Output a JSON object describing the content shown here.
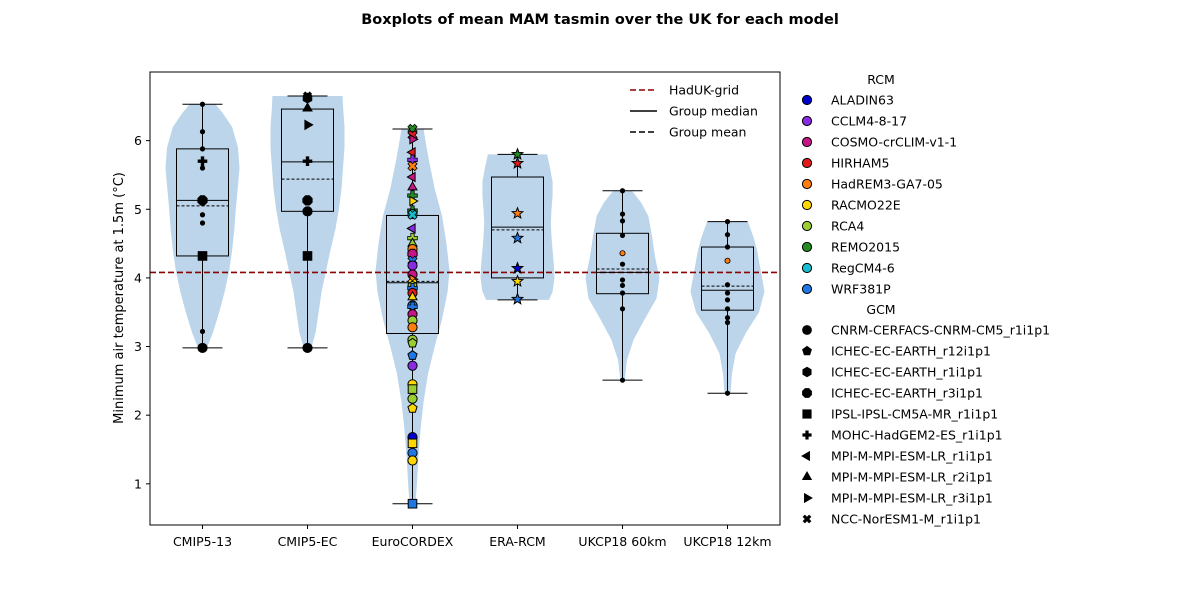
{
  "chart_data": {
    "type": "boxplot",
    "title": "Boxplots of mean MAM tasmin over the UK for each model",
    "xlabel": "",
    "ylabel": "Minimum air temperature at 1.5m (°C)",
    "ylim": [
      0.4,
      7.0
    ],
    "yticks": [
      1,
      2,
      3,
      4,
      5,
      6
    ],
    "grid": false,
    "reference_line": {
      "label": "HadUK-grid",
      "value": 4.08,
      "color": "#8b0000"
    },
    "legend_top": {
      "position": "top-right inside",
      "entries": [
        {
          "label": "HadUK-grid",
          "style": "dashed",
          "color": "#8b0000"
        },
        {
          "label": "Group median",
          "style": "solid",
          "color": "#000000"
        },
        {
          "label": "Group mean",
          "style": "dashed",
          "color": "#000000"
        }
      ]
    },
    "legend_rcm": {
      "title": "RCM",
      "entries": [
        {
          "label": "ALADIN63",
          "color": "#0000cc"
        },
        {
          "label": "CCLM4-8-17",
          "color": "#8a2be2"
        },
        {
          "label": "COSMO-crCLIM-v1-1",
          "color": "#c71585"
        },
        {
          "label": "HIRHAM5",
          "color": "#e31a1c"
        },
        {
          "label": "HadREM3-GA7-05",
          "color": "#ff7f0e"
        },
        {
          "label": "RACMO22E",
          "color": "#ffd700"
        },
        {
          "label": "RCA4",
          "color": "#9acd32"
        },
        {
          "label": "REMO2015",
          "color": "#228b22"
        },
        {
          "label": "RegCM4-6",
          "color": "#17becf"
        },
        {
          "label": "WRF381P",
          "color": "#1f77e4"
        }
      ]
    },
    "legend_gcm": {
      "title": "GCM",
      "entries": [
        {
          "label": "CNRM-CERFACS-CNRM-CM5_r1i1p1",
          "marker": "circle"
        },
        {
          "label": "ICHEC-EC-EARTH_r12i1p1",
          "marker": "pentagon"
        },
        {
          "label": "ICHEC-EC-EARTH_r1i1p1",
          "marker": "hexagon"
        },
        {
          "label": "ICHEC-EC-EARTH_r3i1p1",
          "marker": "octagon"
        },
        {
          "label": "IPSL-IPSL-CM5A-MR_r1i1p1",
          "marker": "square"
        },
        {
          "label": "MOHC-HadGEM2-ES_r1i1p1",
          "marker": "plus"
        },
        {
          "label": "MPI-M-MPI-ESM-LR_r1i1p1",
          "marker": "tri-left"
        },
        {
          "label": "MPI-M-MPI-ESM-LR_r2i1p1",
          "marker": "tri-up"
        },
        {
          "label": "MPI-M-MPI-ESM-LR_r3i1p1",
          "marker": "tri-right"
        },
        {
          "label": "NCC-NorESM1-M_r1i1p1",
          "marker": "x"
        }
      ]
    },
    "groups": [
      {
        "name": "CMIP5-13",
        "q1": 4.32,
        "median": 5.13,
        "mean": 5.05,
        "q3": 5.88,
        "whisker_low": 2.98,
        "whisker_high": 6.53,
        "violin": [
          [
            2.98,
            0.12
          ],
          [
            3.2,
            0.28
          ],
          [
            3.5,
            0.45
          ],
          [
            3.8,
            0.6
          ],
          [
            4.1,
            0.72
          ],
          [
            4.4,
            0.8
          ],
          [
            4.7,
            0.86
          ],
          [
            5.0,
            0.9
          ],
          [
            5.3,
            0.95
          ],
          [
            5.6,
            1.0
          ],
          [
            5.9,
            0.96
          ],
          [
            6.2,
            0.8
          ],
          [
            6.4,
            0.55
          ],
          [
            6.53,
            0.35
          ]
        ],
        "points": [
          {
            "y": 6.53,
            "m": "dot",
            "c": "#000000"
          },
          {
            "y": 6.13,
            "m": "dot",
            "c": "#000000"
          },
          {
            "y": 5.88,
            "m": "dot",
            "c": "#000000"
          },
          {
            "y": 5.7,
            "m": "plus",
            "c": "#000000"
          },
          {
            "y": 5.6,
            "m": "dot",
            "c": "#000000"
          },
          {
            "y": 5.13,
            "m": "octagon",
            "c": "#000000"
          },
          {
            "y": 4.92,
            "m": "dot",
            "c": "#000000"
          },
          {
            "y": 4.8,
            "m": "dot",
            "c": "#000000"
          },
          {
            "y": 4.32,
            "m": "square",
            "c": "#000000"
          },
          {
            "y": 3.22,
            "m": "dot",
            "c": "#000000"
          },
          {
            "y": 2.98,
            "m": "circle",
            "c": "#000000"
          }
        ]
      },
      {
        "name": "CMIP5-EC",
        "q1": 4.97,
        "median": 5.69,
        "mean": 5.44,
        "q3": 6.46,
        "whisker_low": 2.98,
        "whisker_high": 6.65,
        "violin": [
          [
            2.98,
            0.1
          ],
          [
            3.2,
            0.22
          ],
          [
            3.5,
            0.3
          ],
          [
            3.8,
            0.38
          ],
          [
            4.1,
            0.5
          ],
          [
            4.4,
            0.62
          ],
          [
            4.7,
            0.75
          ],
          [
            5.0,
            0.85
          ],
          [
            5.3,
            0.92
          ],
          [
            5.6,
            0.96
          ],
          [
            5.9,
            1.0
          ],
          [
            6.2,
            1.0
          ],
          [
            6.5,
            0.96
          ],
          [
            6.65,
            0.95
          ]
        ],
        "points": [
          {
            "y": 6.65,
            "m": "x",
            "c": "#000000"
          },
          {
            "y": 6.62,
            "m": "hexagon",
            "c": "#000000"
          },
          {
            "y": 6.47,
            "m": "tri-up",
            "c": "#000000"
          },
          {
            "y": 6.23,
            "m": "tri-right",
            "c": "#000000"
          },
          {
            "y": 5.7,
            "m": "plus",
            "c": "#000000"
          },
          {
            "y": 5.13,
            "m": "octagon",
            "c": "#000000"
          },
          {
            "y": 4.97,
            "m": "circle",
            "c": "#000000"
          },
          {
            "y": 4.32,
            "m": "square",
            "c": "#000000"
          },
          {
            "y": 2.98,
            "m": "circle",
            "c": "#000000"
          }
        ]
      },
      {
        "name": "EuroCORDEX",
        "q1": 3.19,
        "median": 3.93,
        "mean": 3.95,
        "q3": 4.91,
        "whisker_low": 0.71,
        "whisker_high": 6.17,
        "violin": [
          [
            0.71,
            0.08
          ],
          [
            1.0,
            0.12
          ],
          [
            1.4,
            0.16
          ],
          [
            1.8,
            0.22
          ],
          [
            2.2,
            0.3
          ],
          [
            2.6,
            0.42
          ],
          [
            3.0,
            0.6
          ],
          [
            3.4,
            0.8
          ],
          [
            3.8,
            0.95
          ],
          [
            4.1,
            1.0
          ],
          [
            4.5,
            0.92
          ],
          [
            4.9,
            0.8
          ],
          [
            5.3,
            0.6
          ],
          [
            5.7,
            0.45
          ],
          [
            6.0,
            0.35
          ],
          [
            6.17,
            0.3
          ]
        ],
        "points": [
          {
            "y": 6.17,
            "m": "x",
            "c": "#228b22"
          },
          {
            "y": 6.08,
            "m": "x",
            "c": "#e31a1c"
          },
          {
            "y": 6.02,
            "m": "tri-right",
            "c": "#c71585"
          },
          {
            "y": 5.83,
            "m": "tri-left",
            "c": "#e31a1c"
          },
          {
            "y": 5.72,
            "m": "plus",
            "c": "#8a2be2"
          },
          {
            "y": 5.63,
            "m": "x",
            "c": "#ff7f0e"
          },
          {
            "y": 5.47,
            "m": "tri-left",
            "c": "#c71585"
          },
          {
            "y": 5.32,
            "m": "tri-up",
            "c": "#c71585"
          },
          {
            "y": 5.2,
            "m": "plus",
            "c": "#228b22"
          },
          {
            "y": 5.12,
            "m": "tri-right",
            "c": "#ffd700"
          },
          {
            "y": 4.98,
            "m": "plus",
            "c": "#228b22"
          },
          {
            "y": 4.93,
            "m": "circle",
            "c": "#17becf"
          },
          {
            "y": 4.92,
            "m": "x",
            "c": "#17becf"
          },
          {
            "y": 4.72,
            "m": "tri-left",
            "c": "#8a2be2"
          },
          {
            "y": 4.58,
            "m": "plus",
            "c": "#9acd32"
          },
          {
            "y": 4.5,
            "m": "tri-up",
            "c": "#9acd32"
          },
          {
            "y": 4.42,
            "m": "circle",
            "c": "#ff7f0e"
          },
          {
            "y": 4.35,
            "m": "octagon",
            "c": "#c71585"
          },
          {
            "y": 4.25,
            "m": "x",
            "c": "#1f77e4"
          },
          {
            "y": 4.18,
            "m": "circle",
            "c": "#8a2be2"
          },
          {
            "y": 4.05,
            "m": "circle",
            "c": "#c71585"
          },
          {
            "y": 3.98,
            "m": "tri-right",
            "c": "#ff7f0e"
          },
          {
            "y": 3.92,
            "m": "x",
            "c": "#ffd700"
          },
          {
            "y": 3.88,
            "m": "hexagon",
            "c": "#9acd32"
          },
          {
            "y": 3.85,
            "m": "plus",
            "c": "#1f77e4"
          },
          {
            "y": 3.78,
            "m": "circle",
            "c": "#e31a1c"
          },
          {
            "y": 3.72,
            "m": "tri-up",
            "c": "#ffd700"
          },
          {
            "y": 3.6,
            "m": "circle",
            "c": "#1f77e4"
          },
          {
            "y": 3.58,
            "m": "plus",
            "c": "#1f77e4"
          },
          {
            "y": 3.47,
            "m": "circle",
            "c": "#c71585"
          },
          {
            "y": 3.38,
            "m": "circle",
            "c": "#9acd32"
          },
          {
            "y": 3.28,
            "m": "circle",
            "c": "#ff7f0e"
          },
          {
            "y": 3.1,
            "m": "circle",
            "c": "#9acd32"
          },
          {
            "y": 3.05,
            "m": "pentagon",
            "c": "#9acd32"
          },
          {
            "y": 2.87,
            "m": "pentagon",
            "c": "#1f77e4"
          },
          {
            "y": 2.72,
            "m": "circle",
            "c": "#8a2be2"
          },
          {
            "y": 2.45,
            "m": "circle",
            "c": "#ffd700"
          },
          {
            "y": 2.38,
            "m": "square",
            "c": "#9acd32"
          },
          {
            "y": 2.24,
            "m": "circle",
            "c": "#9acd32"
          },
          {
            "y": 2.1,
            "m": "pentagon",
            "c": "#ffd700"
          },
          {
            "y": 1.68,
            "m": "circle",
            "c": "#0000cc"
          },
          {
            "y": 1.59,
            "m": "square",
            "c": "#ffd700"
          },
          {
            "y": 1.45,
            "m": "circle",
            "c": "#1f77e4"
          },
          {
            "y": 1.34,
            "m": "circle",
            "c": "#ffd700"
          },
          {
            "y": 0.71,
            "m": "square",
            "c": "#1f77e4"
          }
        ]
      },
      {
        "name": "ERA-RCM",
        "q1": 4.0,
        "median": 4.74,
        "mean": 4.7,
        "q3": 5.47,
        "whisker_low": 3.68,
        "whisker_high": 5.8,
        "violin": [
          [
            3.68,
            0.85
          ],
          [
            3.8,
            0.95
          ],
          [
            4.0,
            1.0
          ],
          [
            4.2,
            0.98
          ],
          [
            4.4,
            0.95
          ],
          [
            4.6,
            0.92
          ],
          [
            4.8,
            0.9
          ],
          [
            5.0,
            0.92
          ],
          [
            5.2,
            0.95
          ],
          [
            5.4,
            0.95
          ],
          [
            5.6,
            0.88
          ],
          [
            5.8,
            0.8
          ]
        ],
        "points": [
          {
            "y": 5.8,
            "m": "star",
            "c": "#228b22"
          },
          {
            "y": 5.67,
            "m": "star",
            "c": "#e31a1c"
          },
          {
            "y": 4.94,
            "m": "star",
            "c": "#ff7f0e"
          },
          {
            "y": 4.58,
            "m": "star",
            "c": "#1f77e4"
          },
          {
            "y": 4.14,
            "m": "star",
            "c": "#0000cc"
          },
          {
            "y": 3.95,
            "m": "star",
            "c": "#ffd700"
          },
          {
            "y": 3.69,
            "m": "star",
            "c": "#1f77e4"
          }
        ]
      },
      {
        "name": "UKCP18 60km",
        "q1": 3.77,
        "median": 4.08,
        "mean": 4.13,
        "q3": 4.65,
        "whisker_low": 2.51,
        "whisker_high": 5.27,
        "violin": [
          [
            2.51,
            0.06
          ],
          [
            2.8,
            0.12
          ],
          [
            3.1,
            0.3
          ],
          [
            3.4,
            0.6
          ],
          [
            3.7,
            0.92
          ],
          [
            4.0,
            1.0
          ],
          [
            4.3,
            0.88
          ],
          [
            4.6,
            0.8
          ],
          [
            4.9,
            0.7
          ],
          [
            5.1,
            0.5
          ],
          [
            5.27,
            0.25
          ]
        ],
        "points": [
          {
            "y": 5.27,
            "m": "dot",
            "c": "#000000"
          },
          {
            "y": 4.93,
            "m": "dot",
            "c": "#000000"
          },
          {
            "y": 4.83,
            "m": "dot",
            "c": "#000000"
          },
          {
            "y": 4.62,
            "m": "dot",
            "c": "#000000"
          },
          {
            "y": 4.36,
            "m": "dot",
            "c": "#ff7f0e"
          },
          {
            "y": 4.2,
            "m": "dot",
            "c": "#000000"
          },
          {
            "y": 3.97,
            "m": "dot",
            "c": "#000000"
          },
          {
            "y": 3.89,
            "m": "dot",
            "c": "#000000"
          },
          {
            "y": 3.78,
            "m": "dot",
            "c": "#000000"
          },
          {
            "y": 3.55,
            "m": "dot",
            "c": "#000000"
          },
          {
            "y": 2.51,
            "m": "dot",
            "c": "#000000"
          }
        ]
      },
      {
        "name": "UKCP18 12km",
        "q1": 3.53,
        "median": 3.82,
        "mean": 3.88,
        "q3": 4.45,
        "whisker_low": 2.32,
        "whisker_high": 4.82,
        "violin": [
          [
            2.32,
            0.08
          ],
          [
            2.6,
            0.12
          ],
          [
            2.9,
            0.22
          ],
          [
            3.2,
            0.5
          ],
          [
            3.5,
            0.85
          ],
          [
            3.8,
            1.0
          ],
          [
            4.1,
            0.9
          ],
          [
            4.4,
            0.8
          ],
          [
            4.6,
            0.7
          ],
          [
            4.82,
            0.55
          ]
        ],
        "points": [
          {
            "y": 4.82,
            "m": "dot",
            "c": "#000000"
          },
          {
            "y": 4.63,
            "m": "dot",
            "c": "#000000"
          },
          {
            "y": 4.45,
            "m": "dot",
            "c": "#000000"
          },
          {
            "y": 4.25,
            "m": "dot",
            "c": "#ff7f0e"
          },
          {
            "y": 3.9,
            "m": "dot",
            "c": "#000000"
          },
          {
            "y": 3.78,
            "m": "dot",
            "c": "#000000"
          },
          {
            "y": 3.68,
            "m": "dot",
            "c": "#000000"
          },
          {
            "y": 3.55,
            "m": "dot",
            "c": "#000000"
          },
          {
            "y": 3.42,
            "m": "dot",
            "c": "#000000"
          },
          {
            "y": 3.35,
            "m": "dot",
            "c": "#000000"
          },
          {
            "y": 2.32,
            "m": "dot",
            "c": "#000000"
          }
        ]
      }
    ]
  }
}
